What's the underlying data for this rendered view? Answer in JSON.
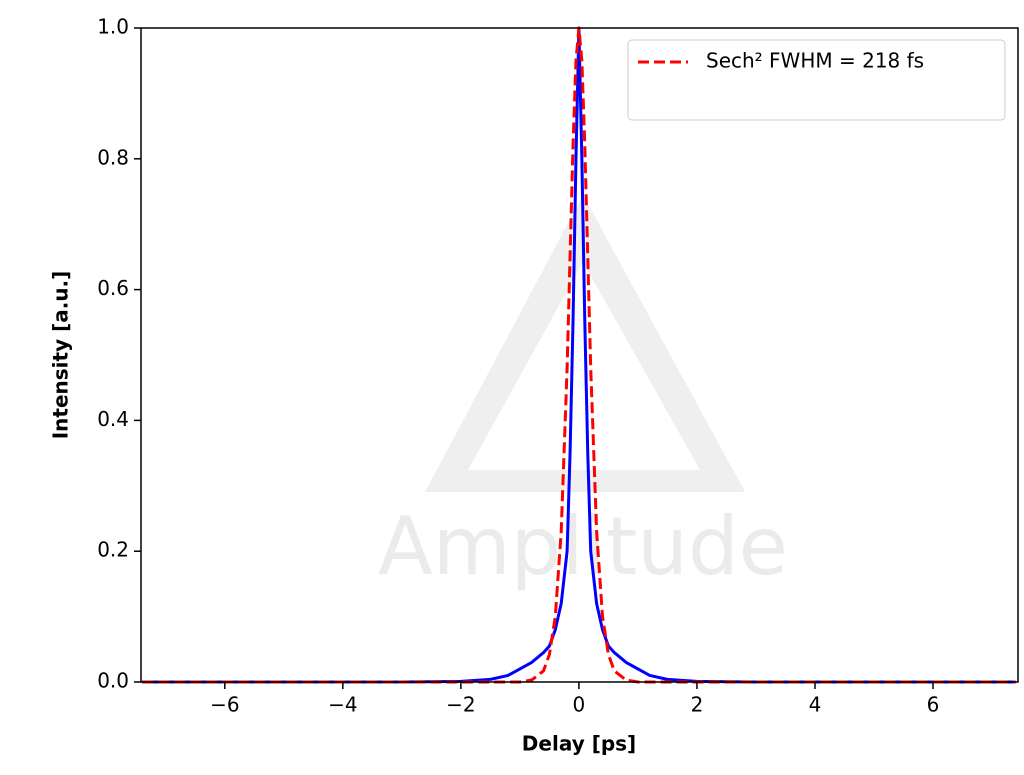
{
  "chart_data": {
    "type": "line",
    "x_label": "Delay [ps]",
    "y_label": "Intensity [a.u.]",
    "watermark": "Amplitude",
    "x": [
      -7.4,
      -3,
      -2,
      -1.5,
      -1.2,
      -1,
      -0.8,
      -0.6,
      -0.5,
      -0.4,
      -0.3,
      -0.2,
      -0.15,
      -0.1,
      -0.05,
      0,
      0.05,
      0.1,
      0.15,
      0.2,
      0.3,
      0.4,
      0.5,
      0.6,
      0.8,
      1,
      1.2,
      1.5,
      2,
      3,
      7.4
    ],
    "series": [
      {
        "color": "#0000ff",
        "dash": false,
        "values": [
          0,
          0,
          0.001,
          0.004,
          0.01,
          0.02,
          0.03,
          0.045,
          0.055,
          0.08,
          0.12,
          0.2,
          0.35,
          0.55,
          0.8,
          1,
          0.8,
          0.55,
          0.35,
          0.2,
          0.12,
          0.08,
          0.055,
          0.045,
          0.03,
          0.02,
          0.01,
          0.004,
          0.001,
          0,
          0
        ]
      },
      {
        "name": "Sech² FWHM = 218 fs",
        "color": "#ff0000",
        "dash": true,
        "values": [
          0,
          0,
          0,
          0,
          0,
          0,
          0.003,
          0.017,
          0.042,
          0.1,
          0.23,
          0.48,
          0.65,
          0.82,
          0.95,
          1,
          0.95,
          0.82,
          0.65,
          0.48,
          0.23,
          0.1,
          0.042,
          0.017,
          0.003,
          0,
          0,
          0,
          0,
          0,
          0
        ]
      }
    ],
    "xlim": [
      -7.42,
      7.44
    ],
    "ylim": [
      0,
      1
    ],
    "xticks": [
      {
        "value": -6,
        "label": "−6"
      },
      {
        "value": -4,
        "label": "−4"
      },
      {
        "value": -2,
        "label": "−2"
      },
      0,
      2,
      4,
      6
    ],
    "yticks": [
      {
        "value": 0,
        "label": "0.0"
      },
      0.2,
      0.4,
      0.6,
      0.8,
      {
        "value": 1,
        "label": "1.0"
      }
    ],
    "grid": false,
    "legend": "upper right"
  }
}
